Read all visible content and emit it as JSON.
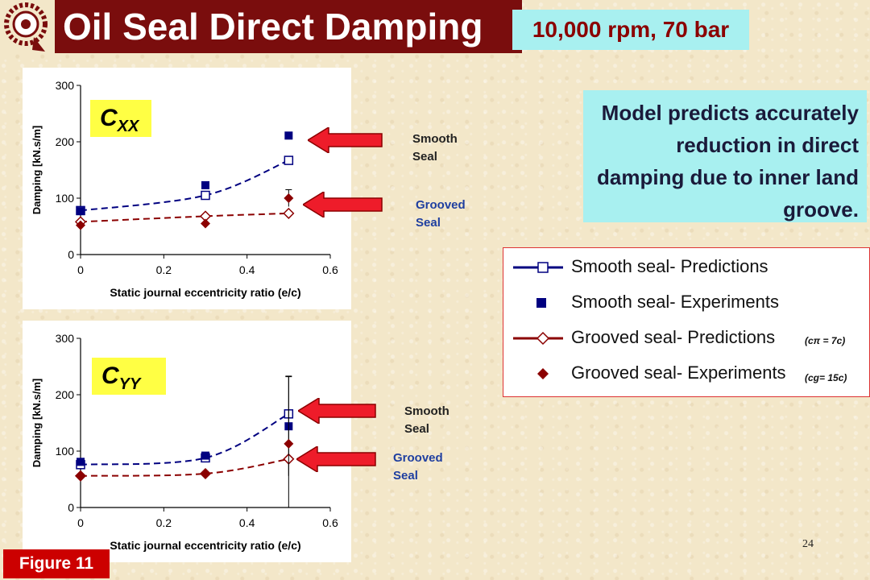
{
  "title": "Oil Seal Direct Damping",
  "subtitle": "10,000 rpm, 70 bar",
  "note": "Model predicts accurately reduction in direct damping due to inner land groove.",
  "figure_label": "Figure 11",
  "page_number": "24",
  "colors": {
    "title_bg": "#7a0d0d",
    "smooth": "#000080",
    "grooved": "#8b0000",
    "cyan_box": "#a8f0f0",
    "yellow_label": "#ffff44"
  },
  "seal_labels": {
    "smooth_1": "Smooth",
    "smooth_2": "Seal",
    "grooved_1": "Grooved",
    "grooved_2": "Seal"
  },
  "legend": {
    "items": [
      "Smooth seal- Predictions",
      "Smooth seal- Experiments",
      "Grooved seal- Predictions",
      "Grooved seal- Experiments"
    ],
    "note1": "(cπ = 7c)",
    "note2": "(cg= 15c)"
  },
  "chart_data": [
    {
      "type": "scatter",
      "label_main": "C",
      "label_sub": "XX",
      "xlabel": "Static journal eccentricity ratio (e/c)",
      "ylabel": "Damping [kN.s/m]",
      "xlim": [
        0,
        0.6
      ],
      "ylim": [
        0,
        300
      ],
      "xticks": [
        "0",
        "0.2",
        "0.4",
        "0.6"
      ],
      "yticks": [
        "0",
        "100",
        "200",
        "300"
      ],
      "grid": false,
      "series": [
        {
          "name": "Smooth seal- Predictions",
          "kind": "line",
          "x": [
            0,
            0.3,
            0.5
          ],
          "y": [
            78,
            105,
            167
          ]
        },
        {
          "name": "Smooth seal- Experiments",
          "kind": "points",
          "x": [
            0,
            0.3,
            0.5
          ],
          "y": [
            77,
            123,
            211
          ]
        },
        {
          "name": "Grooved seal- Predictions",
          "kind": "line",
          "x": [
            0,
            0.3,
            0.5
          ],
          "y": [
            58,
            68,
            73
          ]
        },
        {
          "name": "Grooved seal- Experiments",
          "kind": "points",
          "x": [
            0,
            0.3,
            0.5
          ],
          "y": [
            52,
            55,
            100
          ],
          "err": [
            0,
            0,
            15
          ]
        }
      ]
    },
    {
      "type": "scatter",
      "label_main": "C",
      "label_sub": "YY",
      "xlabel": "Static journal eccentricity ratio (e/c)",
      "ylabel": "Damping [kN.s/m]",
      "xlim": [
        0,
        0.6
      ],
      "ylim": [
        0,
        300
      ],
      "xticks": [
        "0",
        "0.2",
        "0.4",
        "0.6"
      ],
      "yticks": [
        "0",
        "100",
        "200",
        "300"
      ],
      "grid": false,
      "series": [
        {
          "name": "Smooth seal- Predictions",
          "kind": "line",
          "x": [
            0,
            0.3,
            0.5
          ],
          "y": [
            76,
            88,
            166
          ]
        },
        {
          "name": "Smooth seal- Experiments",
          "kind": "points",
          "x": [
            0,
            0.3,
            0.5
          ],
          "y": [
            81,
            92,
            144
          ],
          "err": [
            0,
            0,
            88
          ]
        },
        {
          "name": "Grooved seal- Predictions",
          "kind": "line",
          "x": [
            0,
            0.3,
            0.5
          ],
          "y": [
            56,
            60,
            86
          ]
        },
        {
          "name": "Grooved seal- Experiments",
          "kind": "points",
          "x": [
            0,
            0.3,
            0.5
          ],
          "y": [
            57,
            60,
            113
          ],
          "err": [
            0,
            0,
            120
          ]
        }
      ]
    }
  ]
}
